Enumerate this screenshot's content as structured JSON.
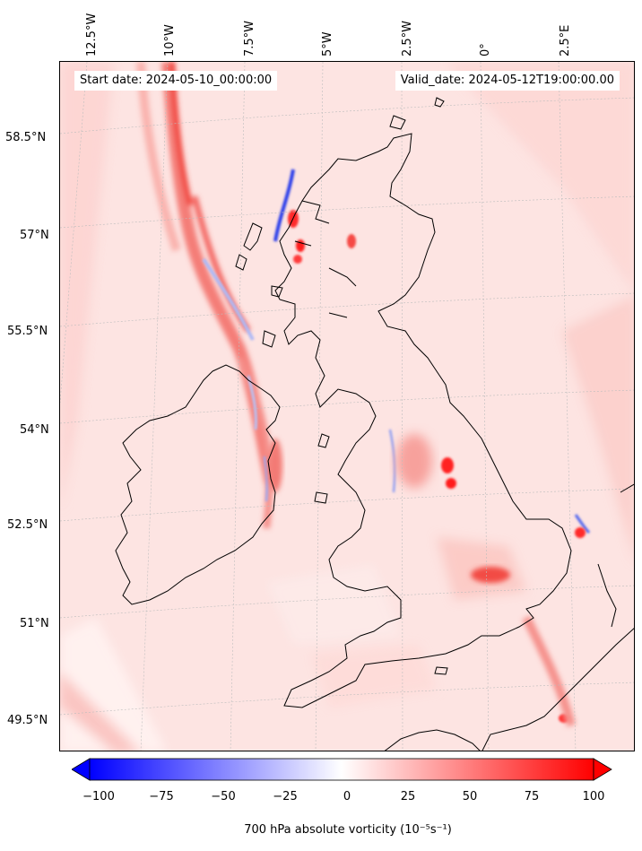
{
  "header": {
    "start_date": "Start date: 2024-05-10_00:00:00",
    "valid_date": "Valid_date: 2024-05-12T19:00:00.00"
  },
  "longitude_labels": [
    "12.5°W",
    "10°W",
    "7.5°W",
    "5°W",
    "2.5°W",
    "0°",
    "2.5°E"
  ],
  "latitude_labels": [
    "58.5°N",
    "57°N",
    "55.5°N",
    "54°N",
    "52.5°N",
    "51°N",
    "49.5°N"
  ],
  "colorbar": {
    "ticks": [
      "−100",
      "−75",
      "−50",
      "−25",
      "0",
      "25",
      "50",
      "75",
      "100"
    ],
    "label": "700 hPa absolute vorticity (10⁻⁵s⁻¹)",
    "min": -100,
    "max": 100,
    "extend": "both",
    "colormap": "bwr"
  },
  "colors": {
    "background_field": "#fde6e4",
    "positive_max": "#ff0000",
    "negative_max": "#0000ff",
    "coastline": "#000000",
    "gridline": "#bbbbbb"
  }
}
